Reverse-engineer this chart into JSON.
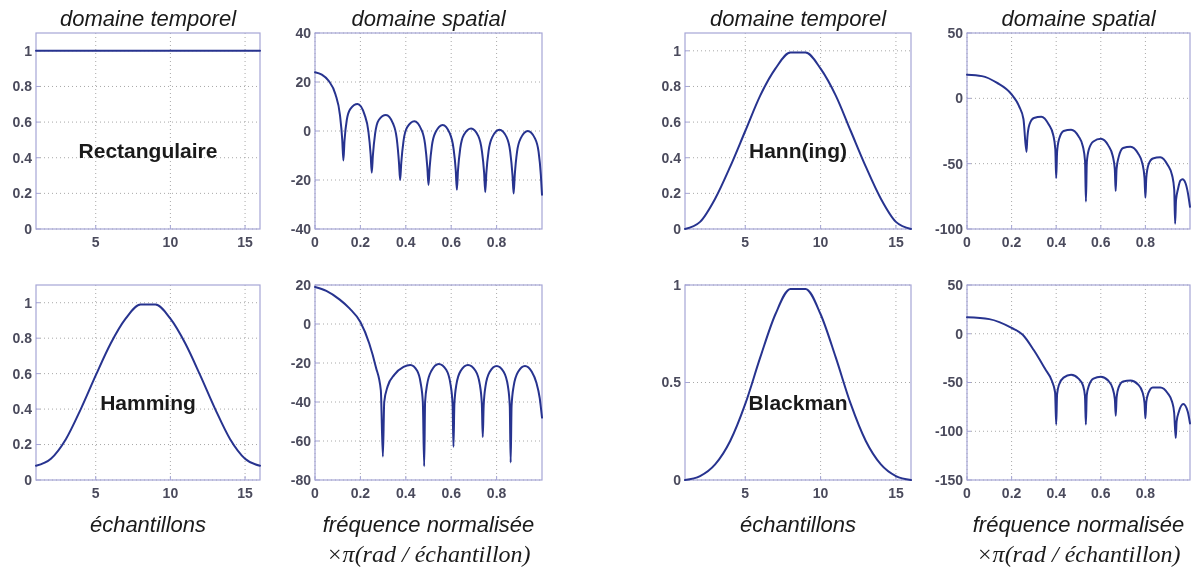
{
  "chart_data": [
    {
      "type": "line",
      "title": "domaine temporel",
      "x": [
        1,
        2,
        3,
        4,
        5,
        6,
        7,
        8,
        9,
        10,
        11,
        12,
        13,
        14,
        15,
        16
      ],
      "series": [
        {
          "color": "#27338f",
          "values": [
            1,
            1,
            1,
            1,
            1,
            1,
            1,
            1,
            1,
            1,
            1,
            1,
            1,
            1,
            1,
            1
          ]
        }
      ],
      "xlim": [
        1,
        16
      ],
      "xticks": [
        5,
        10,
        15
      ],
      "ylim": [
        0,
        1.1
      ],
      "yticks": [
        0,
        0.2,
        0.4,
        0.6,
        0.8,
        1
      ],
      "grid": true,
      "annotations": [
        "Rectangulaire"
      ]
    },
    {
      "type": "line",
      "title": "domaine spatial",
      "x": [
        0,
        0.03,
        0.06,
        0.09,
        0.11,
        0.12,
        0.125,
        0.13,
        0.14,
        0.156,
        0.1875,
        0.219,
        0.235,
        0.245,
        0.25,
        0.255,
        0.265,
        0.281,
        0.3125,
        0.344,
        0.36,
        0.37,
        0.375,
        0.38,
        0.39,
        0.406,
        0.4375,
        0.469,
        0.485,
        0.495,
        0.5,
        0.505,
        0.515,
        0.531,
        0.5625,
        0.594,
        0.61,
        0.62,
        0.625,
        0.63,
        0.64,
        0.656,
        0.6875,
        0.719,
        0.735,
        0.745,
        0.75,
        0.755,
        0.765,
        0.781,
        0.8125,
        0.844,
        0.86,
        0.87,
        0.875,
        0.88,
        0.89,
        0.906,
        0.9375,
        0.969,
        0.985,
        0.995,
        1
      ],
      "series": [
        {
          "color": "#27338f",
          "values": [
            24,
            23,
            20.5,
            15,
            6.5,
            -3.5,
            -12,
            -4,
            4.5,
            9,
            11,
            6.5,
            0,
            -9.5,
            -17,
            -10,
            -1,
            4.5,
            6.5,
            3,
            -3,
            -13,
            -20,
            -13,
            -4,
            1.5,
            4,
            0.5,
            -5.5,
            -15,
            -22,
            -15,
            -6,
            -0.5,
            2.5,
            -1,
            -7,
            -16,
            -24,
            -16,
            -7,
            -1.5,
            1,
            -2,
            -8,
            -17,
            -25,
            -17,
            -8,
            -2.5,
            0.5,
            -2.5,
            -8.5,
            -18,
            -25.5,
            -18,
            -8.5,
            -3,
            0,
            -3,
            -8.5,
            -18,
            -26
          ]
        }
      ],
      "xlim": [
        0,
        1
      ],
      "xticks": [
        0,
        0.2,
        0.4,
        0.6,
        0.8
      ],
      "ylim": [
        -40,
        40
      ],
      "yticks": [
        -40,
        -20,
        0,
        20,
        40
      ],
      "grid": true
    },
    {
      "type": "line",
      "title": "domaine temporel",
      "x": [
        1,
        2,
        3,
        4,
        5,
        6,
        7,
        8,
        9,
        10,
        11,
        12,
        13,
        14,
        15,
        16
      ],
      "series": [
        {
          "color": "#27338f",
          "values": [
            0,
            0.04,
            0.17,
            0.35,
            0.55,
            0.75,
            0.9,
            0.99,
            0.99,
            0.9,
            0.75,
            0.55,
            0.35,
            0.17,
            0.04,
            0
          ]
        }
      ],
      "xlim": [
        1,
        16
      ],
      "xticks": [
        5,
        10,
        15
      ],
      "ylim": [
        0,
        1.1
      ],
      "yticks": [
        0,
        0.2,
        0.4,
        0.6,
        0.8,
        1
      ],
      "grid": true,
      "annotations": [
        "Hann(ing)"
      ]
    },
    {
      "type": "line",
      "title": "domaine spatial",
      "x": [
        0,
        0.0667,
        0.1333,
        0.2,
        0.2333,
        0.2533,
        0.2667,
        0.2707,
        0.28,
        0.3,
        0.3333,
        0.3667,
        0.3867,
        0.396,
        0.4,
        0.404,
        0.4133,
        0.4333,
        0.4667,
        0.5,
        0.52,
        0.5293,
        0.5333,
        0.5373,
        0.5467,
        0.5667,
        0.6,
        0.6333,
        0.6533,
        0.6627,
        0.6667,
        0.6707,
        0.68,
        0.7,
        0.7333,
        0.7667,
        0.7867,
        0.796,
        0.8,
        0.804,
        0.8133,
        0.8333,
        0.8667,
        0.9,
        0.92,
        0.9293,
        0.9333,
        0.9373,
        0.9467,
        0.9567,
        0.9667,
        0.98,
        0.99,
        1
      ],
      "series": [
        {
          "color": "#27338f",
          "values": [
            18,
            17,
            12,
            3,
            -6,
            -16,
            -41,
            -30,
            -20,
            -15,
            -14,
            -20,
            -28,
            -39,
            -61,
            -41,
            -31,
            -25,
            -24,
            -29,
            -37,
            -48,
            -79,
            -49,
            -39,
            -33,
            -31,
            -36,
            -44,
            -54,
            -71,
            -54,
            -45,
            -38,
            -37,
            -42,
            -50,
            -61,
            -76,
            -61,
            -51,
            -46,
            -45,
            -51,
            -59,
            -70,
            -96,
            -78,
            -69,
            -63,
            -62,
            -65,
            -72,
            -83
          ]
        }
      ],
      "xlim": [
        0,
        1
      ],
      "xticks": [
        0,
        0.2,
        0.4,
        0.6,
        0.8
      ],
      "ylim": [
        -100,
        50
      ],
      "yticks": [
        -100,
        -50,
        0,
        50
      ],
      "grid": true
    },
    {
      "type": "line",
      "xlabel": "échantillons",
      "x": [
        1,
        2,
        3,
        4,
        5,
        6,
        7,
        8,
        9,
        10,
        11,
        12,
        13,
        14,
        15,
        16
      ],
      "series": [
        {
          "color": "#27338f",
          "values": [
            0.08,
            0.12,
            0.23,
            0.4,
            0.59,
            0.77,
            0.91,
            0.99,
            0.99,
            0.91,
            0.77,
            0.59,
            0.4,
            0.23,
            0.12,
            0.08
          ]
        }
      ],
      "xlim": [
        1,
        16
      ],
      "xticks": [
        5,
        10,
        15
      ],
      "ylim": [
        0,
        1.1
      ],
      "yticks": [
        0,
        0.2,
        0.4,
        0.6,
        0.8,
        1
      ],
      "grid": true,
      "annotations": [
        "Hamming"
      ]
    },
    {
      "type": "line",
      "xlabel": "fréquence normalisée\n×π(rad / échantillon)",
      "x": [
        0,
        0.05,
        0.109,
        0.152,
        0.2,
        0.239,
        0.268,
        0.29,
        0.299,
        0.305,
        0.32,
        0.35,
        0.39,
        0.42,
        0.45,
        0.465,
        0.475,
        0.481,
        0.485,
        0.494,
        0.513,
        0.545,
        0.578,
        0.597,
        0.606,
        0.61,
        0.614,
        0.623,
        0.642,
        0.674,
        0.707,
        0.726,
        0.735,
        0.739,
        0.743,
        0.751,
        0.77,
        0.8,
        0.831,
        0.85,
        0.858,
        0.862,
        0.866,
        0.875,
        0.895,
        0.925,
        0.955,
        0.975,
        0.99,
        1
      ],
      "series": [
        {
          "color": "#27338f",
          "values": [
            19,
            17,
            12.5,
            8,
            1,
            -10,
            -22,
            -34,
            -68,
            -40,
            -32,
            -26,
            -22,
            -21,
            -24,
            -30,
            -40,
            -73,
            -40,
            -31,
            -24,
            -20.5,
            -23.5,
            -31,
            -41,
            -63,
            -41,
            -31,
            -24,
            -21,
            -24,
            -31,
            -41,
            -58,
            -42,
            -32,
            -24.5,
            -21.5,
            -24.5,
            -32,
            -42,
            -71,
            -42,
            -32,
            -24.5,
            -21.5,
            -24.5,
            -30,
            -38,
            -48
          ]
        }
      ],
      "xlim": [
        0,
        1
      ],
      "xticks": [
        0,
        0.2,
        0.4,
        0.6,
        0.8
      ],
      "ylim": [
        -80,
        20
      ],
      "yticks": [
        -80,
        -60,
        -40,
        -20,
        0,
        20
      ],
      "grid": true
    },
    {
      "type": "line",
      "xlabel": "échantillons",
      "x": [
        1,
        2,
        3,
        4,
        5,
        6,
        7,
        8,
        9,
        10,
        11,
        12,
        13,
        14,
        15,
        16
      ],
      "series": [
        {
          "color": "#27338f",
          "values": [
            0,
            0.02,
            0.08,
            0.2,
            0.39,
            0.63,
            0.85,
            0.98,
            0.98,
            0.85,
            0.63,
            0.39,
            0.2,
            0.08,
            0.02,
            0
          ]
        }
      ],
      "xlim": [
        1,
        16
      ],
      "xticks": [
        5,
        10,
        15
      ],
      "ylim": [
        0,
        1
      ],
      "yticks": [
        0,
        0.5,
        1
      ],
      "grid": true,
      "annotations": [
        "Blackman"
      ]
    },
    {
      "type": "line",
      "xlabel": "fréquence normalisée\n×π(rad / échantillon)",
      "x": [
        0,
        0.1,
        0.2,
        0.25,
        0.3,
        0.35,
        0.38,
        0.395,
        0.4,
        0.404,
        0.413,
        0.433,
        0.467,
        0.5,
        0.52,
        0.529,
        0.533,
        0.537,
        0.547,
        0.567,
        0.6,
        0.633,
        0.653,
        0.663,
        0.667,
        0.671,
        0.68,
        0.7,
        0.733,
        0.767,
        0.787,
        0.796,
        0.8,
        0.804,
        0.813,
        0.833,
        0.867,
        0.9,
        0.92,
        0.929,
        0.936,
        0.94,
        0.95,
        0.97,
        0.99,
        1
      ],
      "series": [
        {
          "color": "#27338f",
          "values": [
            17,
            15,
            6,
            -1,
            -17,
            -36,
            -48,
            -60,
            -93,
            -62,
            -52,
            -45,
            -42,
            -46,
            -53,
            -64,
            -93,
            -63,
            -53,
            -46,
            -44,
            -48,
            -56,
            -67,
            -84,
            -65,
            -55,
            -49,
            -48,
            -52,
            -60,
            -71,
            -87,
            -70,
            -61,
            -55,
            -55,
            -61,
            -70,
            -81,
            -107,
            -90,
            -80,
            -72,
            -80,
            -92
          ]
        }
      ],
      "xlim": [
        0,
        1
      ],
      "xticks": [
        0,
        0.2,
        0.4,
        0.6,
        0.8
      ],
      "ylim": [
        -150,
        50
      ],
      "yticks": [
        -150,
        -100,
        -50,
        0,
        50
      ],
      "grid": true
    }
  ]
}
